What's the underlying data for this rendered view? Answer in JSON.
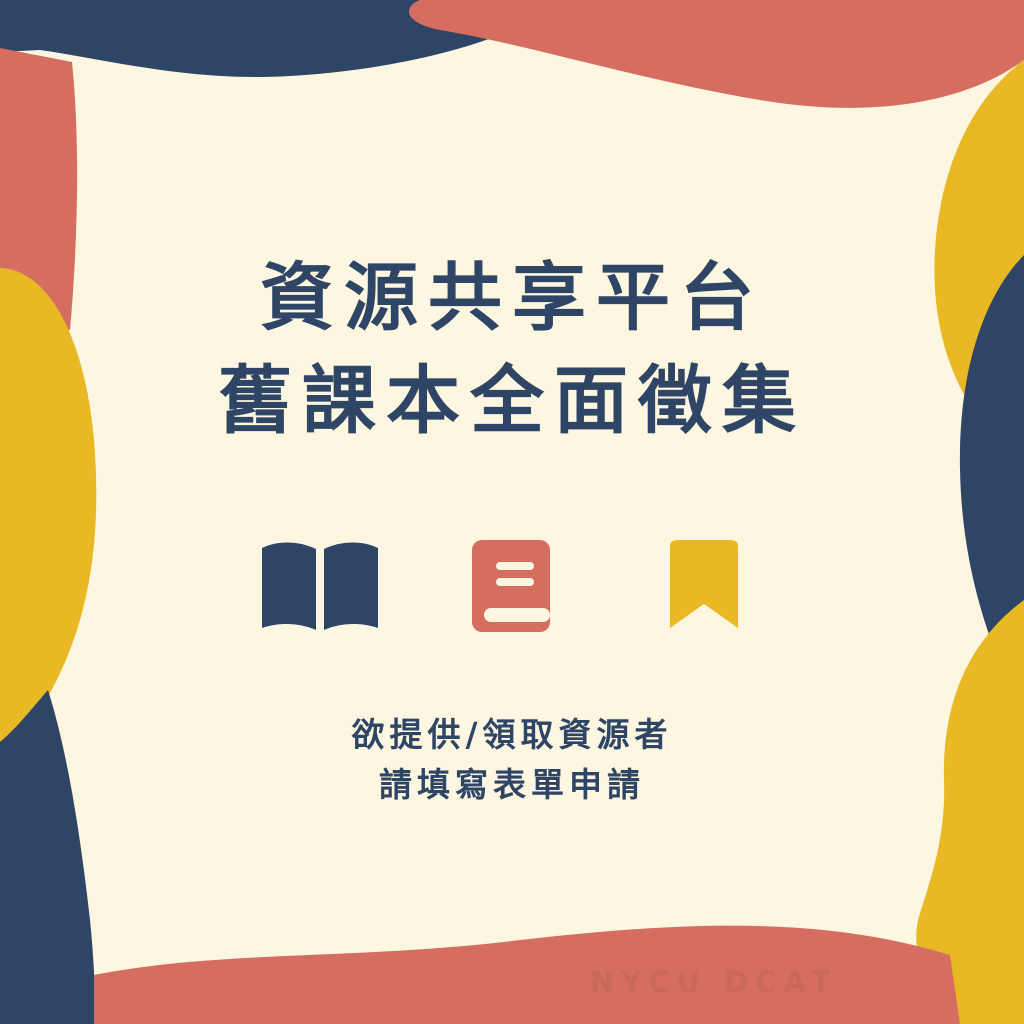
{
  "colors": {
    "background": "#fdf7e1",
    "navy": "#2f4566",
    "coral": "#d56e60",
    "mustard": "#e8b925"
  },
  "title": {
    "line1": "資源共享平台",
    "line2": "舊課本全面徵集"
  },
  "subtitle": {
    "line1": "欲提供/領取資源者",
    "line2": "請填寫表單申請"
  },
  "brand": "NYCU DCAT",
  "icons": [
    "open-book-icon",
    "closed-book-icon",
    "bookmark-icon"
  ]
}
